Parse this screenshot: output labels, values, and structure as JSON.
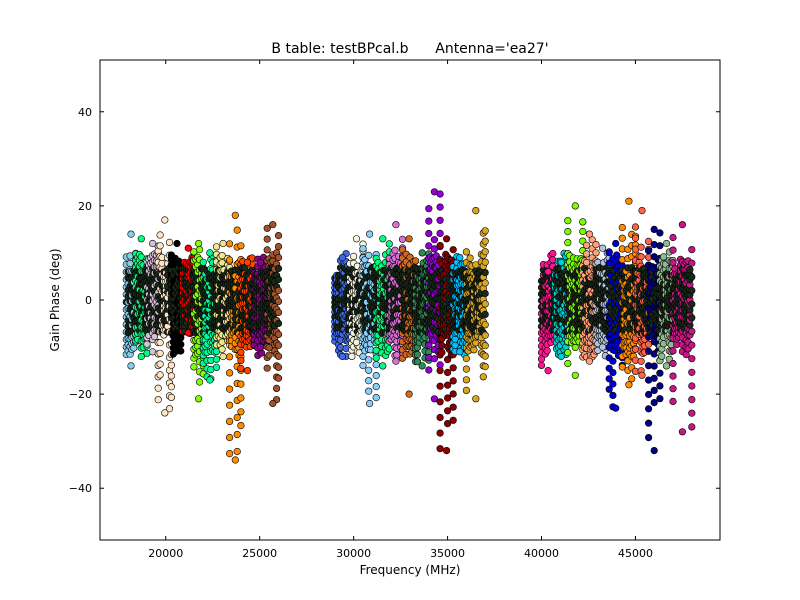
{
  "chart_data": {
    "type": "scatter",
    "title": "B table: testBPcal.b      Antenna='ea27'",
    "xlabel": "Frequency (MHz)",
    "ylabel": "Gain Phase (deg)",
    "xlim": [
      16500,
      49500
    ],
    "ylim": [
      -51,
      51
    ],
    "xticks": [
      20000,
      25000,
      30000,
      35000,
      40000,
      45000
    ],
    "yticks": [
      -40,
      -20,
      0,
      20,
      40
    ],
    "grid": false,
    "marker": "circle",
    "marker_edge_color": "#000000",
    "series_note": "Each spectral window is plotted as vertical columns of points (one column per channel); values are the per-window frequency range and phase span in degrees.",
    "spectral_windows": [
      {
        "freq": [
          17900,
          18400
        ],
        "phase": [
          -14,
          14
        ],
        "color": "#87ceeb"
      },
      {
        "freq": [
          18400,
          19000
        ],
        "phase": [
          -12,
          13
        ],
        "color": "#00ff7f"
      },
      {
        "freq": [
          19000,
          19600
        ],
        "phase": [
          -11,
          12
        ],
        "color": "#d8bfd8"
      },
      {
        "freq": [
          19600,
          20300
        ],
        "phase": [
          -24,
          17
        ],
        "color": "#ffe4c4"
      },
      {
        "freq": [
          20300,
          20900
        ],
        "phase": [
          -7,
          12
        ],
        "color": "#000000"
      },
      {
        "freq": [
          20900,
          21500
        ],
        "phase": [
          -7,
          11
        ],
        "color": "#ff0000"
      },
      {
        "freq": [
          21500,
          22000
        ],
        "phase": [
          -21,
          12
        ],
        "color": "#7fff00"
      },
      {
        "freq": [
          22000,
          22700
        ],
        "phase": [
          -17,
          10
        ],
        "color": "#00fa9a"
      },
      {
        "freq": [
          22700,
          23400
        ],
        "phase": [
          -12,
          12
        ],
        "color": "#f0e68c"
      },
      {
        "freq": [
          23400,
          24000
        ],
        "phase": [
          -34,
          18
        ],
        "color": "#ff8c00"
      },
      {
        "freq": [
          24000,
          24700
        ],
        "phase": [
          -15,
          8
        ],
        "color": "#ff4500"
      },
      {
        "freq": [
          24700,
          25400
        ],
        "phase": [
          -10,
          8
        ],
        "color": "#8b008b"
      },
      {
        "freq": [
          25400,
          26000
        ],
        "phase": [
          -22,
          16
        ],
        "color": "#a0522d"
      },
      {
        "freq": [
          29000,
          29800
        ],
        "phase": [
          -12,
          9
        ],
        "color": "#4169e1"
      },
      {
        "freq": [
          29800,
          30500
        ],
        "phase": [
          -9,
          13
        ],
        "color": "#f5f5dc"
      },
      {
        "freq": [
          30500,
          31200
        ],
        "phase": [
          -22,
          14
        ],
        "color": "#87cefa"
      },
      {
        "freq": [
          31200,
          31900
        ],
        "phase": [
          -14,
          13
        ],
        "color": "#00ff7f"
      },
      {
        "freq": [
          31900,
          32600
        ],
        "phase": [
          -13,
          16
        ],
        "color": "#da70d6"
      },
      {
        "freq": [
          32600,
          33300
        ],
        "phase": [
          -20,
          13
        ],
        "color": "#d2691e"
      },
      {
        "freq": [
          33300,
          34000
        ],
        "phase": [
          -14,
          10
        ],
        "color": "#2e8b57"
      },
      {
        "freq": [
          34000,
          34600
        ],
        "phase": [
          -21,
          23
        ],
        "color": "#9400d3"
      },
      {
        "freq": [
          34600,
          35300
        ],
        "phase": [
          -32,
          13
        ],
        "color": "#8b0000"
      },
      {
        "freq": [
          35300,
          36000
        ],
        "phase": [
          -11,
          9
        ],
        "color": "#00bfff"
      },
      {
        "freq": [
          36000,
          37000
        ],
        "phase": [
          -21,
          19
        ],
        "color": "#daa520"
      },
      {
        "freq": [
          40000,
          40700
        ],
        "phase": [
          -15,
          6
        ],
        "color": "#ff1493"
      },
      {
        "freq": [
          40700,
          41400
        ],
        "phase": [
          -12,
          8
        ],
        "color": "#00ced1"
      },
      {
        "freq": [
          41400,
          42200
        ],
        "phase": [
          -16,
          20
        ],
        "color": "#7cfc00"
      },
      {
        "freq": [
          42200,
          42900
        ],
        "phase": [
          -13,
          14
        ],
        "color": "#ffa07a"
      },
      {
        "freq": [
          42900,
          43600
        ],
        "phase": [
          -10,
          11
        ],
        "color": "#b0c4de"
      },
      {
        "freq": [
          43600,
          44300
        ],
        "phase": [
          -23,
          12
        ],
        "color": "#0000cd"
      },
      {
        "freq": [
          44300,
          45000
        ],
        "phase": [
          -18,
          21
        ],
        "color": "#ff8c00"
      },
      {
        "freq": [
          45000,
          45700
        ],
        "phase": [
          -16,
          19
        ],
        "color": "#ff6347"
      },
      {
        "freq": [
          45700,
          46300
        ],
        "phase": [
          -32,
          15
        ],
        "color": "#000080"
      },
      {
        "freq": [
          46300,
          47000
        ],
        "phase": [
          -14,
          12
        ],
        "color": "#8fbc8f"
      },
      {
        "freq": [
          47000,
          48000
        ],
        "phase": [
          -28,
          16
        ],
        "color": "#c71585"
      }
    ]
  }
}
